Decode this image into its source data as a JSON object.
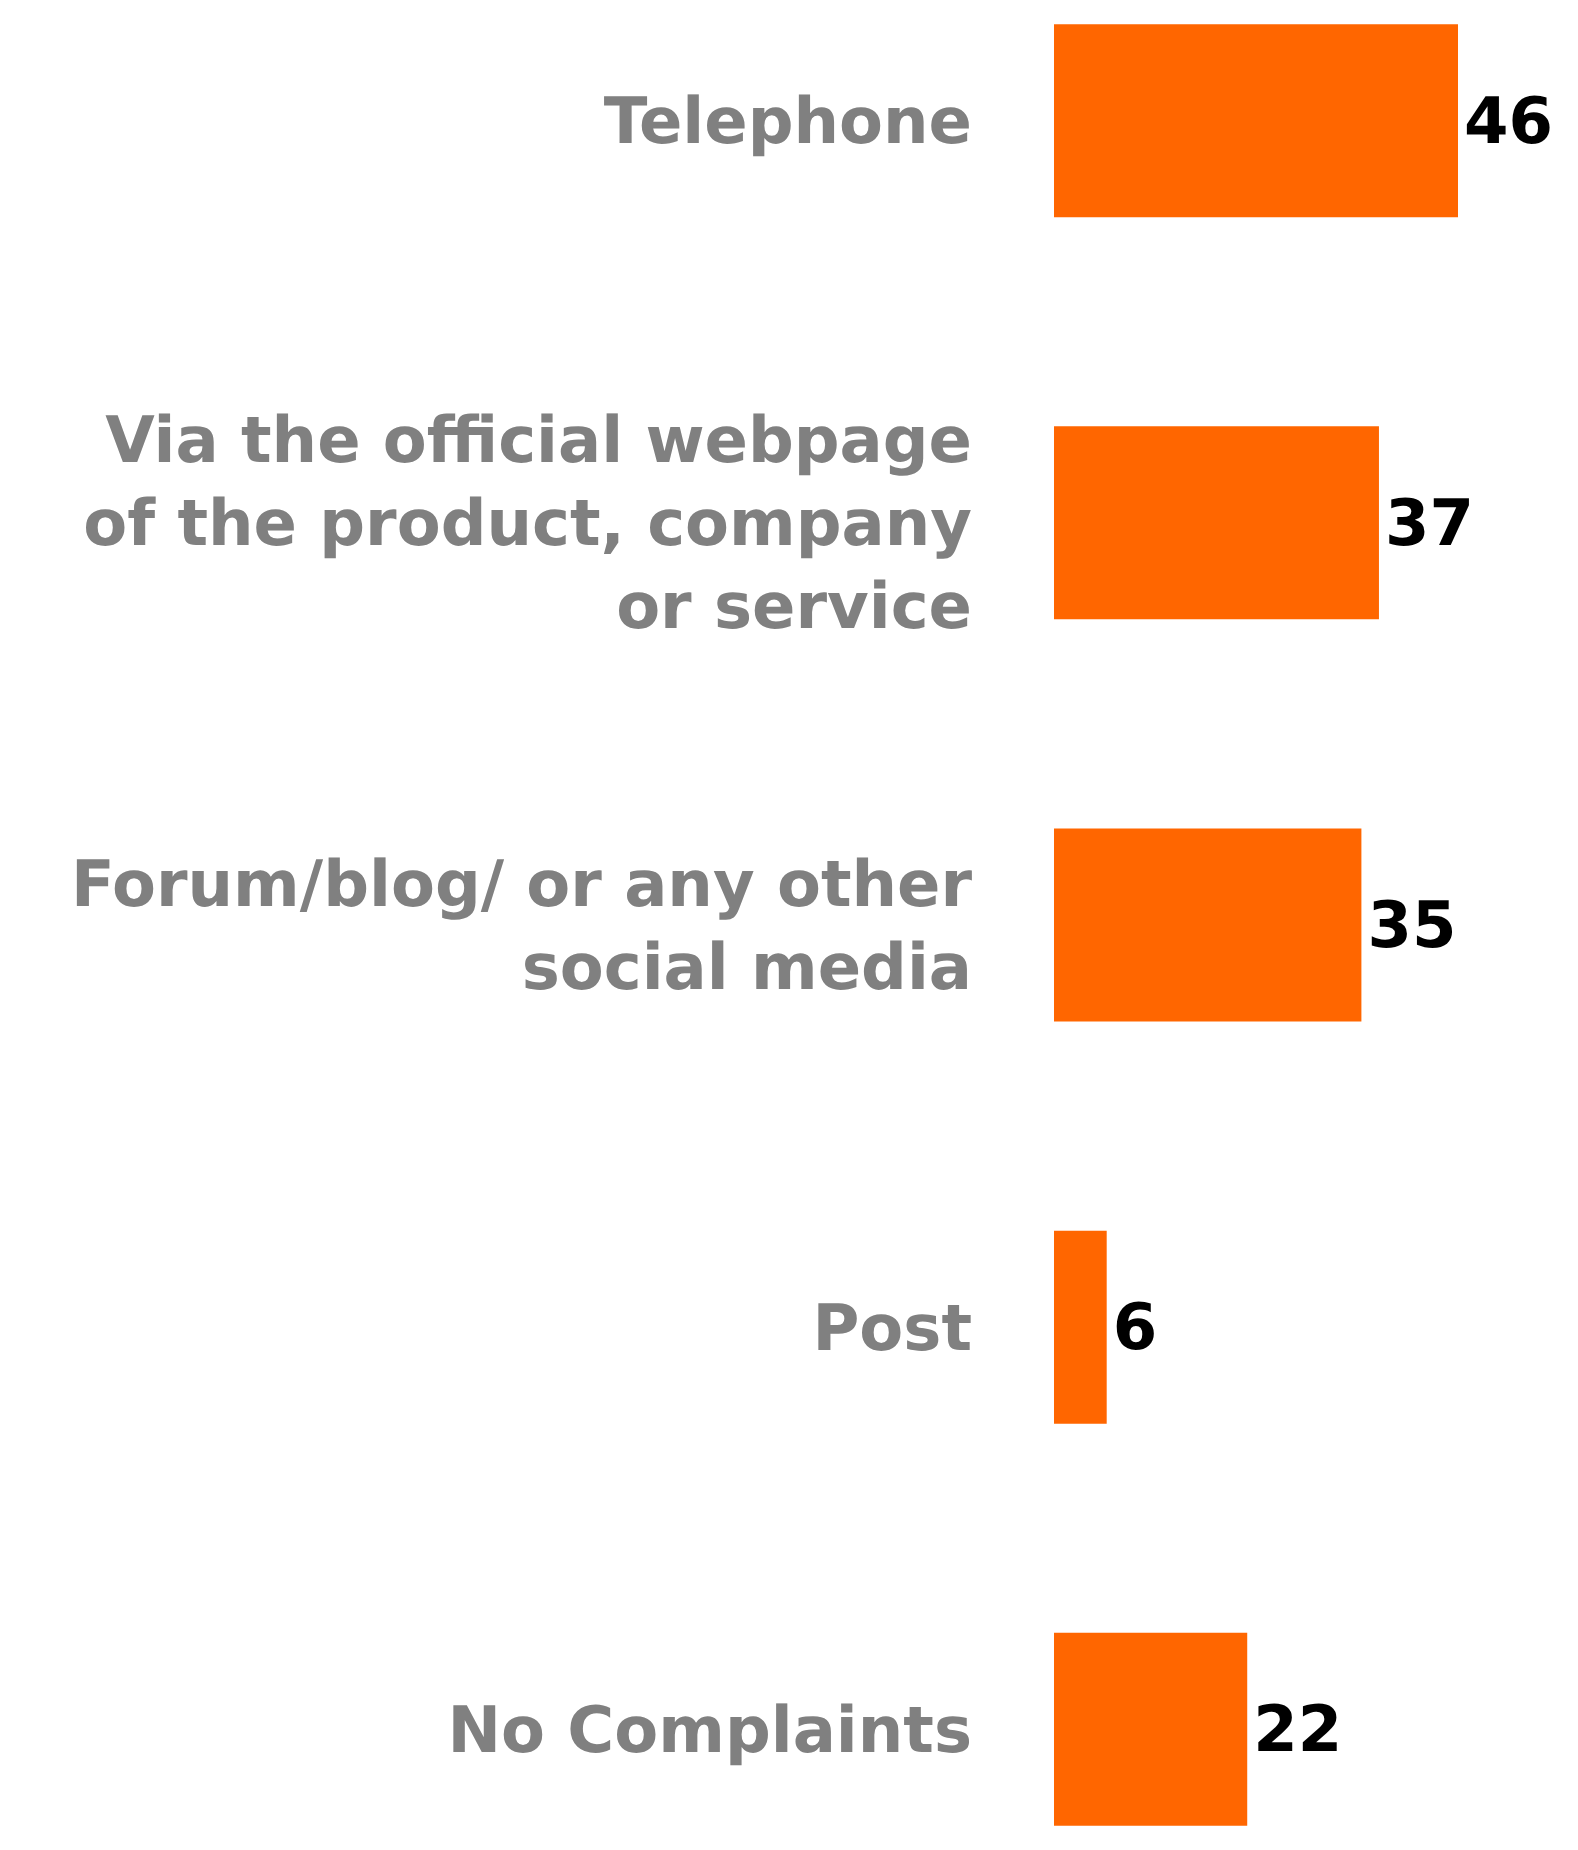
{
  "chart_data": {
    "type": "bar",
    "orientation": "horizontal",
    "categories": [
      "Telephone",
      "Via the official webpage of the product, company or service",
      "Forum/blog/ or any other social media",
      "Post",
      "No Complaints"
    ],
    "values": [
      46,
      37,
      35,
      6,
      22
    ],
    "color": "#ff6600",
    "data_labels": true
  }
}
